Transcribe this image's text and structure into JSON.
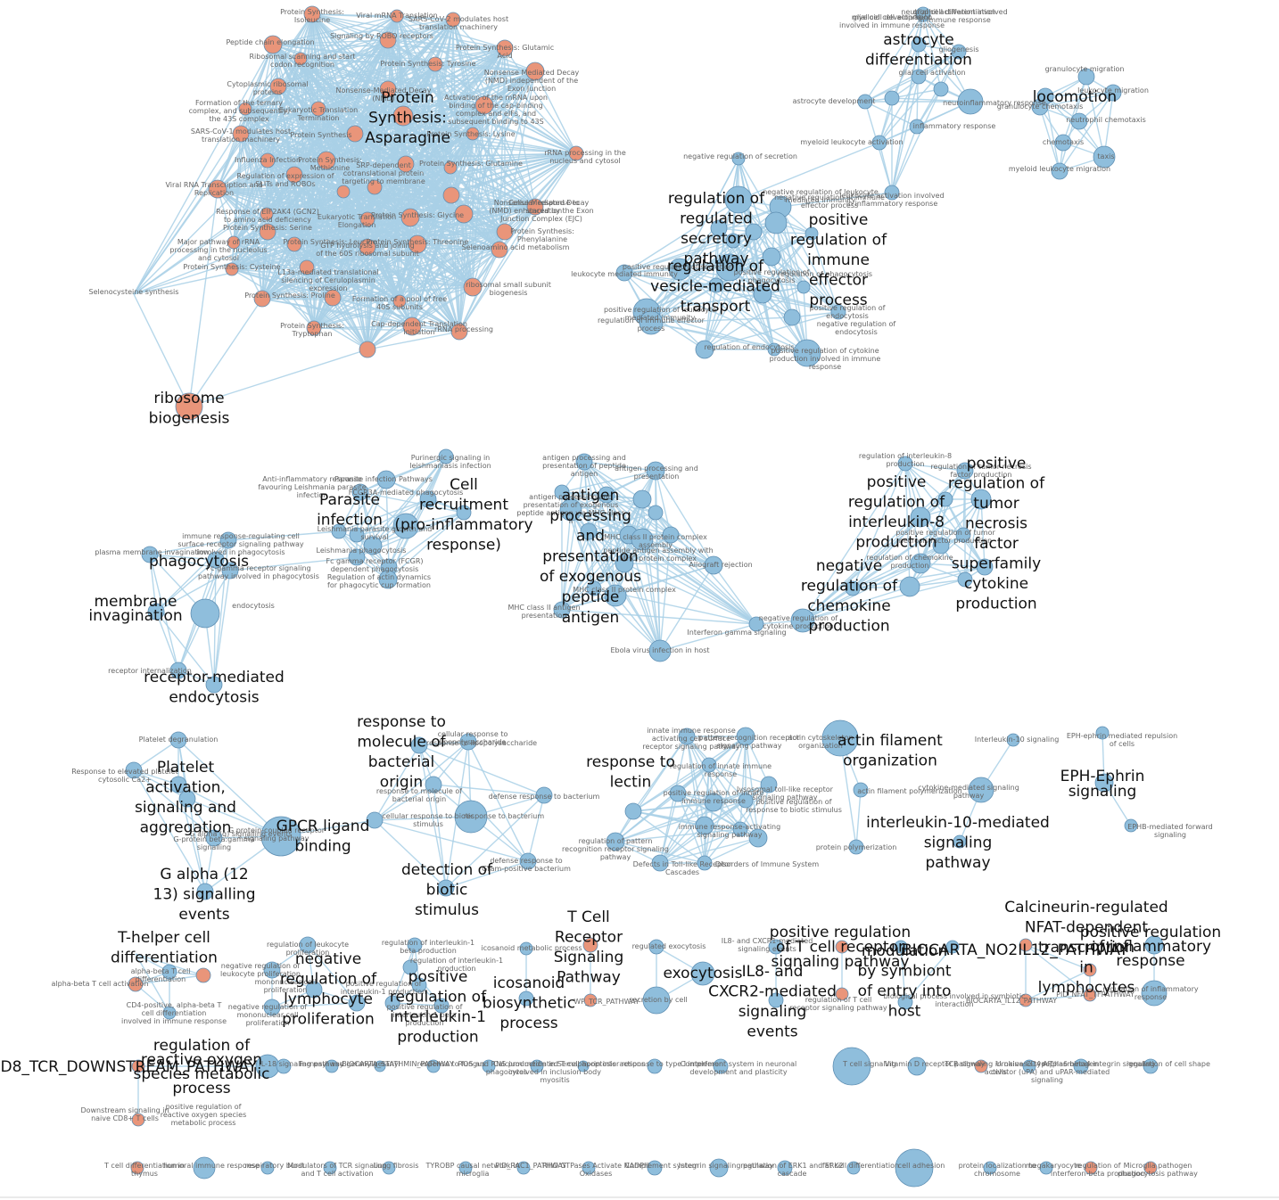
{
  "colors": {
    "blue_node": "#8fbedc",
    "orange_node": "#e9957a",
    "edge": "#a9d0e6",
    "big_label": "#111111",
    "small_label": "#666666"
  },
  "clusters": {
    "protein_synthesis": {
      "title_lines": [
        "Protein",
        "Synthesis:",
        "Asparagine"
      ],
      "terms": [
        "Protein Synthesis: Isoleucine",
        "Viral mRNA Translation",
        "SARS-CoV-2 modulates host translation machinery",
        "Peptide chain elongation",
        "Signaling by ROBO receptors",
        "Protein Synthesis: Glutamic Acid",
        "Ribosomal scanning and start codon recognition",
        "Protein Synthesis: Tyrosine",
        "Nonsense Mediated Decay (NMD) independent of the Exon Junction",
        "Cytoplasmic ribosomal proteins",
        "Nonsense-Mediated Decay (NMD)",
        "Formation of the ternary complex, and subsequently, the 43S complex",
        "Eukaryotic Translation Termination",
        "Activation of the mRNA upon binding of the cap-binding complex and eIFs, and subsequent binding to 43S",
        "SARS-CoV-1 modulates host translation machinery",
        "Protein Synthesis",
        "Protein Synthesis: Lysine",
        "Influenza Infection",
        "Protein Synthesis: Methionine",
        "Regulation of expression of SLITs and ROBOs",
        "SRP-dependent cotranslational protein targeting to membrane",
        "Protein Synthesis: Glutamine",
        "rRNA processing in the nucleus and cytosol",
        "Viral RNA Transcription and Replication",
        "Cellular response to starvation",
        "Nonsense Mediated Decay (NMD) enhanced by the Exon Junction Complex (EJC)",
        "Response of EIF2AK4 (GCN2) to amino acid deficiency",
        "Eukaryotic Translation Elongation",
        "Protein Synthesis: Glycine",
        "Protein Synthesis: Serine",
        "Protein Synthesis: Phenylalanine",
        "Major pathway of rRNA processing in the nucleolus and cytosol",
        "Protein Synthesis: Leucine",
        "Protein Synthesis: Threonine",
        "Selenoamino acid metabolism",
        "GTP hydrolysis and joining of the 60S ribosomal subunit",
        "Protein Synthesis: Cysteine",
        "L13a-mediated translational silencing of Ceruloplasmin expression",
        "ribosomal small subunit biogenesis",
        "Selenocysteine synthesis",
        "Protein Synthesis: Proline",
        "Formation of a pool of free 40S subunits",
        "Protein Synthesis: Tryptophan",
        "Cap-dependent Translation Initiation",
        "rRNA processing"
      ]
    },
    "ribosome": {
      "title_lines": [
        "ribosome",
        "biogenesis"
      ]
    },
    "astrocyte": {
      "title_lines": [
        "astrocyte",
        "differentiation"
      ],
      "terms": [
        "glial cell differentiation",
        "glial cell development",
        "gliogenesis",
        "glial cell activation",
        "astrocyte development",
        "neuroinflammatory response",
        "inflammatory response",
        "myeloid leukocyte activation",
        "leukocyte activation involved in inflammatory response",
        "neutrophil activation involved in immune response",
        "myeloid cell activation involved in immune response"
      ]
    },
    "locomotion": {
      "title_lines": [
        "locomotion"
      ],
      "terms": [
        "granulocyte migration",
        "leukocyte migration",
        "granulocyte chemotaxis",
        "neutrophil chemotaxis",
        "chemotaxis",
        "taxis",
        "myeloid leukocyte migration"
      ]
    },
    "secretion": {
      "title_lines_a": [
        "regulation of",
        "regulated",
        "secretory",
        "pathway"
      ],
      "title_lines_b": [
        "regulation of",
        "vesicle-mediated",
        "transport"
      ],
      "title_lines_c": [
        "positive",
        "regulation of",
        "immune",
        "effector",
        "process"
      ],
      "terms": [
        "negative regulation of secretion",
        "positive regulation of secretion",
        "leukocyte mediated immunity",
        "positive regulation of phagocytosis",
        "regulation of phagocytosis",
        "positive regulation of leukocyte mediated immunity",
        "regulation of immune effector process",
        "positive regulation of endocytosis",
        "regulation of endocytosis",
        "positive regulation of cytokine production involved in immune response",
        "negative regulation of endocytosis",
        "negative regulation of immune effector process",
        "negative regulation of leukocyte mediated immunity"
      ]
    },
    "parasite": {
      "title_lines": [
        "Parasite",
        "infection"
      ],
      "terms": [
        "Purinergic signaling in leishmaniasis infection",
        "Anti-inflammatory response favouring Leishmania parasite infection",
        "Parasite infection Pathways",
        "FCGR3A-mediated phagocytosis",
        "Leishmania parasite growth and survival",
        "Leishmania phagocytosis",
        "Fc gamma receptor (FCGR) dependent phagocytosis",
        "Regulation of actin dynamics for phagocytic cup formation"
      ]
    },
    "cell_recruitment": {
      "title_lines": [
        "Cell",
        "recruitment",
        "(pro-inflammatory",
        "response)"
      ]
    },
    "antigen": {
      "title_lines": [
        "antigen",
        "processing",
        "and",
        "presentation",
        "of exogenous",
        "peptide",
        "antigen"
      ],
      "terms": [
        "antigen processing and presentation of peptide antigen",
        "antigen processing and presentation",
        "antigen processing and presentation of exogenous peptide antigen via MHC class II",
        "MHC class II protein complex assembly",
        "peptide antigen assembly with MHC protein complex",
        "MHC class II protein complex",
        "MHC class II antigen presentation",
        "Allograft rejection",
        "Interferon gamma signaling",
        "Ebola virus infection in host"
      ]
    },
    "phagocytosis": {
      "title_lines": [
        "phagocytosis"
      ],
      "terms": [
        "immune response-regulating cell surface receptor signaling pathway involved in phagocytosis",
        "plasma membrane invagination",
        "Fc-gamma receptor signaling pathway involved in phagocytosis",
        "endocytosis",
        "receptor internalization"
      ]
    },
    "membrane_invagination": {
      "title_lines": [
        "membrane",
        "invagination"
      ]
    },
    "receptor_endocytosis": {
      "title_lines": [
        "receptor-mediated",
        "endocytosis"
      ]
    },
    "il8": {
      "title_lines": [
        "positive",
        "regulation of",
        "interleukin-8",
        "production"
      ],
      "terms": [
        "regulation of interleukin-8 production",
        "regulation of tumor necrosis factor production",
        "positive regulation of tumor necrosis factor production",
        "regulation of chemokine production",
        "negative regulation of cytokine production"
      ]
    },
    "tnf": {
      "title_lines": [
        "positive",
        "regulation of",
        "tumor",
        "necrosis",
        "factor",
        "superfamily",
        "cytokine",
        "production"
      ]
    },
    "chemokine": {
      "title_lines": [
        "negative",
        "regulation of",
        "chemokine",
        "production"
      ]
    },
    "platelet": {
      "title_lines": [
        "Platelet",
        "activation,",
        "signaling and",
        "aggregation"
      ],
      "terms": [
        "Platelet degranulation",
        "Response to elevated platelet cytosolic Ca2+",
        "G-protein beta:gamma signalling",
        "G alpha (q) signalling events",
        "G protein-coupled receptor signaling pathway"
      ]
    },
    "gpcr": {
      "title_lines": [
        "GPCR ligand",
        "binding"
      ]
    },
    "galpha": {
      "title_lines": [
        "G alpha (12",
        "13) signalling",
        "events"
      ]
    },
    "bacterial": {
      "title_lines": [
        "response to",
        "molecule of",
        "bacterial",
        "origin"
      ],
      "terms": [
        "cellular response to lipopolysaccharide",
        "response to lipopolysaccharide",
        "response to molecule of bacterial origin",
        "cellular response to biotic stimulus",
        "response to bacterium",
        "defense response to bacterium",
        "defense response to Gram-positive bacterium"
      ]
    },
    "biotic": {
      "title_lines": [
        "detection of",
        "biotic",
        "stimulus"
      ]
    },
    "lectin": {
      "title_lines": [
        "response to",
        "lectin"
      ],
      "terms": [
        "innate immune response activating cell surface receptor signaling pathway",
        "pattern recognition receptor signaling pathway",
        "regulation of innate immune response",
        "positive regulation of innate immune response",
        "lysosomal toll-like receptor signaling pathway",
        "positive regulation of response to biotic stimulus",
        "immune response-activating signaling pathway",
        "regulation of pattern recognition receptor signaling pathway",
        "Defects in Toll-like Receptor Cascades",
        "Disorders of Immune System"
      ]
    },
    "actin": {
      "title_lines": [
        "actin filament",
        "organization"
      ],
      "terms": [
        "actin cytoskeleton organization",
        "actin filament polymerization",
        "protein polymerization"
      ]
    },
    "il10": {
      "title_lines": [
        "interleukin-10-mediated",
        "signaling",
        "pathway"
      ],
      "terms": [
        "Interleukin-10 signaling",
        "cytokine-mediated signaling pathway"
      ]
    },
    "eph": {
      "title_lines": [
        "EPH-Ephrin",
        "signaling"
      ],
      "terms": [
        "EPH-ephrin mediated repulsion of cells",
        "EPHB-mediated forward signaling"
      ]
    },
    "th": {
      "title_lines": [
        "T-helper cell",
        "differentiation"
      ],
      "terms": [
        "alpha-beta T cell differentiation",
        "alpha-beta T cell activation",
        "CD4-positive, alpha-beta T cell differentiation involved in immune response"
      ]
    },
    "lymphocyte": {
      "title_lines": [
        "negative",
        "regulation of",
        "lymphocyte",
        "proliferation"
      ],
      "terms": [
        "regulation of leukocyte proliferation",
        "negative regulation of leukocyte proliferation",
        "mononuclear cell proliferation",
        "negative regulation of mononuclear cell proliferation"
      ]
    },
    "il1": {
      "title_lines": [
        "positive",
        "regulation of",
        "interleukin-1",
        "production"
      ],
      "terms": [
        "regulation of interleukin-1 beta production",
        "regulation of interleukin-1 production",
        "positive regulation of interleukin-1 production",
        "positive regulation of interleukin-1 beta production"
      ]
    },
    "icosanoid": {
      "title_lines": [
        "icosanoid",
        "biosynthetic",
        "process"
      ],
      "terms": [
        "icosanoid metabolic process"
      ]
    },
    "tcr": {
      "title_lines": [
        "T Cell",
        "Receptor",
        "Signaling",
        "Pathway"
      ],
      "terms": [
        "WP_TCR_PATHWAY"
      ]
    },
    "exocytosis": {
      "title_lines": [
        "exocytosis"
      ],
      "terms": [
        "regulated exocytosis",
        "secretion by cell"
      ]
    },
    "cxcr2": {
      "title_lines": [
        "IL8- and",
        "CXCR2-mediated",
        "signaling",
        "events"
      ],
      "terms": [
        "IL8- and CXCR1-mediated signaling events"
      ]
    },
    "tcell_receptor": {
      "title_lines": [
        "positive regulation",
        "of T cell receptor",
        "signaling pathway"
      ],
      "terms": [
        "regulation of T cell receptor signaling pathway"
      ]
    },
    "biocarta_no2": {
      "title_lines": [
        "BIOCARTA_NO2IL12_PATHWAY"
      ]
    },
    "symbiont": {
      "title_lines": [
        "modulation",
        "by symbiont",
        "of entry into",
        "host"
      ],
      "terms": [
        "biological process involved in symbiotic interaction"
      ]
    },
    "nfat": {
      "title_lines": [
        "Calcineurin-regulated",
        "NFAT-dependent",
        "transcription",
        "in",
        "lymphocytes"
      ],
      "terms": [
        "PID_NFAT_TFPATHWAY",
        "BIOCARTA_IL12_PATHWAY"
      ]
    },
    "inflammatory": {
      "title_lines": [
        "positive regulation",
        "of inflammatory",
        "response"
      ],
      "terms": [
        "regulation of inflammatory response"
      ]
    },
    "cd8": {
      "title_lines": [
        "PID_CD8_TCR_DOWNSTREAM_PATHWAY"
      ],
      "terms": [
        "Downstream signaling in naive CD8+ T cells"
      ]
    },
    "ros": {
      "title_lines": [
        "regulation of",
        "reactive oxygen",
        "species metabolic",
        "process"
      ],
      "terms": [
        "positive regulation of reactive oxygen species metabolic process"
      ]
    }
  },
  "singletons_row1": [
    "IL-18 signaling pathway",
    "Farnesyl and geranylgeranyl",
    "BIOCARTA_STATHMIN_PATHWAY",
    "response to fungus",
    "ROS and RNS production in phagocytes",
    "Calcium mediated T cell apoptosis involved in inclusion body myositis",
    "Semaphorin interactions",
    "response to type I interferon",
    "Complement system in neuronal development and plasticity",
    "T cell signaling",
    "Vitamin D receptor pathway",
    "TCR signaling in naive CD4+ T cells",
    "Urokinase-type plasminogen activator (uPA) and uPAR-mediated signaling",
    "Alpha6 beta4 integrin signaling",
    "regulation of cell shape"
  ],
  "singletons_row2": [
    "T cell differentiation in thymus",
    "humoral immune response",
    "respiratory burst",
    "Modulators of TCR signaling and T cell activation",
    "Lung fibrosis",
    "TYROBP causal network in microglia",
    "PID_RAC1_PATHWAY",
    "RHO GTPases Activate NADPH Oxidases",
    "Complement system",
    "Integrin signaling pathway",
    "regulation of ERK1 and ERK2 cascade",
    "fat cell differentiation",
    "cell adhesion",
    "protein localization to chromosome",
    "megakaryocyte",
    "regulation of interferon-beta production",
    "Microglia pathogen phagocytosis pathway"
  ]
}
